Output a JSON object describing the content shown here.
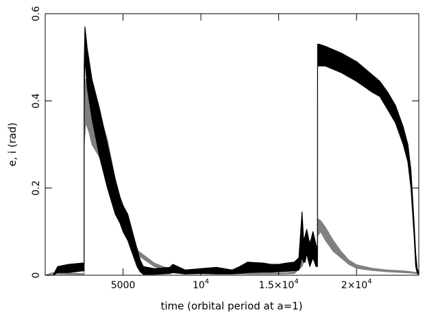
{
  "chart_data": {
    "type": "line",
    "title": "",
    "xlabel": "time (orbital period at a=1)",
    "ylabel": "e, i (rad)",
    "xlim": [
      0,
      24000
    ],
    "ylim": [
      0,
      0.6
    ],
    "grid": false,
    "x_ticks": [
      {
        "value": 5000,
        "label": "5000"
      },
      {
        "value": 10000,
        "label": "10",
        "sup": "4"
      },
      {
        "value": 15000,
        "label": "1.5×10",
        "sup": "4"
      },
      {
        "value": 20000,
        "label": "2×10",
        "sup": "4"
      }
    ],
    "y_ticks": [
      {
        "value": 0,
        "label": "0"
      },
      {
        "value": 0.2,
        "label": "0.2"
      },
      {
        "value": 0.4,
        "label": "0.4"
      },
      {
        "value": 0.6,
        "label": "0.6"
      }
    ],
    "series": [
      {
        "color": "#000000",
        "band": true,
        "x": [
          0,
          500,
          800,
          1500,
          2400,
          2499,
          2500,
          2550,
          2700,
          3000,
          3500,
          4000,
          4500,
          4800,
          5000,
          5300,
          5600,
          5900,
          6100,
          6300,
          7000,
          8000,
          8200,
          9000,
          10000,
          11000,
          12000,
          12500,
          13000,
          14000,
          14500,
          15000,
          15500,
          16000,
          16300,
          16500,
          16600,
          16700,
          16800,
          17000,
          17200,
          17400,
          17490,
          17500,
          17600,
          18000,
          19000,
          20000,
          21000,
          21500,
          22000,
          22500,
          23000,
          23300,
          23500,
          23700,
          23800,
          23900,
          24000
        ],
        "low": [
          0,
          0.0,
          0.006,
          0.006,
          0.01,
          0.01,
          0.38,
          0.5,
          0.43,
          0.36,
          0.27,
          0.2,
          0.14,
          0.12,
          0.1,
          0.08,
          0.05,
          0.02,
          0.008,
          0.002,
          0.002,
          0.004,
          0.006,
          0.003,
          0.004,
          0.003,
          0.003,
          0.004,
          0.006,
          0.007,
          0.007,
          0.008,
          0.009,
          0.01,
          0.012,
          0.04,
          0.03,
          0.03,
          0.05,
          0.02,
          0.04,
          0.02,
          0.02,
          0.48,
          0.48,
          0.48,
          0.465,
          0.445,
          0.42,
          0.41,
          0.38,
          0.35,
          0.3,
          0.26,
          0.2,
          0.09,
          0.02,
          0.005,
          0.002
        ],
        "high": [
          0,
          0.0,
          0.02,
          0.025,
          0.028,
          0.028,
          0.48,
          0.57,
          0.52,
          0.45,
          0.38,
          0.3,
          0.22,
          0.18,
          0.16,
          0.14,
          0.1,
          0.06,
          0.035,
          0.02,
          0.015,
          0.018,
          0.025,
          0.012,
          0.015,
          0.018,
          0.012,
          0.02,
          0.03,
          0.028,
          0.025,
          0.025,
          0.028,
          0.03,
          0.04,
          0.145,
          0.08,
          0.09,
          0.105,
          0.07,
          0.1,
          0.07,
          0.06,
          0.53,
          0.53,
          0.525,
          0.51,
          0.49,
          0.46,
          0.445,
          0.42,
          0.39,
          0.34,
          0.3,
          0.24,
          0.12,
          0.05,
          0.015,
          0.006
        ]
      },
      {
        "color": "#808080",
        "band": true,
        "x": [
          0,
          500,
          1000,
          2400,
          2499,
          2500,
          2600,
          2800,
          3000,
          3500,
          4000,
          4500,
          5000,
          5500,
          6000,
          7000,
          8000,
          9000,
          10000,
          11000,
          12000,
          13000,
          14000,
          15000,
          16000,
          16500,
          16800,
          17000,
          17300,
          17490,
          17500,
          17700,
          18000,
          18500,
          19000,
          19500,
          20000,
          21000,
          22000,
          23000,
          23500,
          24000
        ],
        "low": [
          0,
          0.004,
          0.003,
          0.002,
          0.002,
          0.3,
          0.35,
          0.33,
          0.3,
          0.27,
          0.22,
          0.16,
          0.11,
          0.07,
          0.045,
          0.02,
          0.009,
          0.005,
          0.004,
          0.005,
          0.004,
          0.003,
          0.003,
          0.003,
          0.004,
          0.02,
          0.05,
          0.06,
          0.05,
          0.04,
          0.09,
          0.1,
          0.08,
          0.055,
          0.04,
          0.025,
          0.016,
          0.011,
          0.008,
          0.006,
          0.005,
          0.003
        ],
        "high": [
          0,
          0.006,
          0.005,
          0.004,
          0.004,
          0.38,
          0.45,
          0.44,
          0.42,
          0.37,
          0.31,
          0.22,
          0.15,
          0.09,
          0.055,
          0.028,
          0.014,
          0.008,
          0.006,
          0.008,
          0.006,
          0.005,
          0.005,
          0.005,
          0.007,
          0.03,
          0.07,
          0.08,
          0.07,
          0.06,
          0.13,
          0.125,
          0.11,
          0.08,
          0.055,
          0.035,
          0.024,
          0.016,
          0.012,
          0.01,
          0.008,
          0.005
        ]
      }
    ]
  }
}
